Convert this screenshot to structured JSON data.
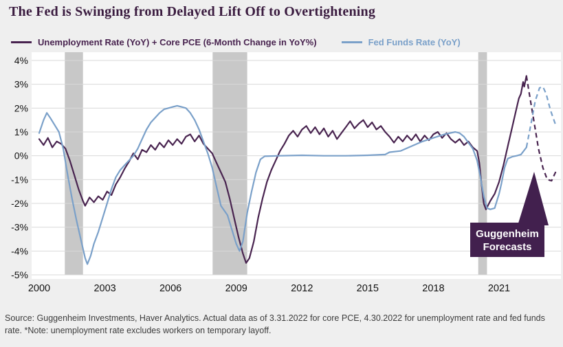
{
  "page": {
    "title": "The Fed is Swinging from Delayed Lift Off to Overtightening",
    "source": "Source: Guggenheim Investments, Haver Analytics. Actual data as of 3.31.2022 for core PCE, 4.30.2022 for unemployment rate and fed funds rate. *Note: unemployment rate excludes workers on temporary layoff."
  },
  "annotation": {
    "lines": [
      "Guggenheim",
      "Forecasts"
    ],
    "color": "#42204e",
    "text_color": "#ffffff"
  },
  "chart_data": {
    "type": "line",
    "title": "The Fed is Swinging from Delayed Lift Off to Overtightening",
    "xlabel": "",
    "ylabel": "",
    "xlim": [
      2000,
      2023.7
    ],
    "ylim": [
      -5,
      4
    ],
    "grid": true,
    "legend_position": "top",
    "x_ticks": [
      2000,
      2003,
      2006,
      2009,
      2012,
      2015,
      2018,
      2021
    ],
    "y_ticks": [
      {
        "value": 4,
        "label": "4%"
      },
      {
        "value": 3,
        "label": "3%"
      },
      {
        "value": 2,
        "label": "2%"
      },
      {
        "value": 1,
        "label": "1%"
      },
      {
        "value": 0,
        "label": "0%"
      },
      {
        "value": -1,
        "label": "-1%"
      },
      {
        "value": -2,
        "label": "-2%"
      },
      {
        "value": -3,
        "label": "-3%"
      },
      {
        "value": -4,
        "label": "-4%"
      },
      {
        "value": -5,
        "label": "-5%"
      }
    ],
    "recession_bands": [
      [
        2001.17,
        2002.0
      ],
      [
        2007.92,
        2009.5
      ],
      [
        2020.05,
        2020.45
      ]
    ],
    "colors": {
      "grid": "#d9d9d9",
      "recession_band": "#c8c8c8",
      "background": "#efefef",
      "plot_background": "#ffffff",
      "tick_label": "#111111"
    },
    "series": [
      {
        "name": "Unemployment Rate (YoY) + Core PCE (6-Month Change in YoY%)",
        "color": "#48234f",
        "solid": [
          [
            2000.0,
            0.7
          ],
          [
            2000.2,
            0.45
          ],
          [
            2000.4,
            0.75
          ],
          [
            2000.6,
            0.35
          ],
          [
            2000.8,
            0.6
          ],
          [
            2001.0,
            0.5
          ],
          [
            2001.2,
            0.3
          ],
          [
            2001.4,
            -0.2
          ],
          [
            2001.6,
            -0.8
          ],
          [
            2001.8,
            -1.4
          ],
          [
            2002.0,
            -1.9
          ],
          [
            2002.1,
            -2.1
          ],
          [
            2002.3,
            -1.75
          ],
          [
            2002.5,
            -1.95
          ],
          [
            2002.7,
            -1.7
          ],
          [
            2002.9,
            -1.85
          ],
          [
            2003.1,
            -1.5
          ],
          [
            2003.3,
            -1.65
          ],
          [
            2003.5,
            -1.2
          ],
          [
            2003.7,
            -0.9
          ],
          [
            2003.9,
            -0.55
          ],
          [
            2004.1,
            -0.25
          ],
          [
            2004.3,
            0.1
          ],
          [
            2004.5,
            -0.15
          ],
          [
            2004.7,
            0.25
          ],
          [
            2004.9,
            0.15
          ],
          [
            2005.1,
            0.45
          ],
          [
            2005.3,
            0.25
          ],
          [
            2005.5,
            0.55
          ],
          [
            2005.7,
            0.35
          ],
          [
            2005.9,
            0.65
          ],
          [
            2006.1,
            0.45
          ],
          [
            2006.3,
            0.7
          ],
          [
            2006.5,
            0.5
          ],
          [
            2006.7,
            0.8
          ],
          [
            2006.9,
            0.9
          ],
          [
            2007.1,
            0.6
          ],
          [
            2007.3,
            0.85
          ],
          [
            2007.5,
            0.5
          ],
          [
            2007.7,
            0.3
          ],
          [
            2007.9,
            0.1
          ],
          [
            2008.1,
            -0.3
          ],
          [
            2008.3,
            -0.7
          ],
          [
            2008.5,
            -1.1
          ],
          [
            2008.7,
            -1.8
          ],
          [
            2008.9,
            -2.6
          ],
          [
            2009.1,
            -3.4
          ],
          [
            2009.3,
            -4.1
          ],
          [
            2009.45,
            -4.5
          ],
          [
            2009.6,
            -4.3
          ],
          [
            2009.8,
            -3.6
          ],
          [
            2010.0,
            -2.6
          ],
          [
            2010.2,
            -1.8
          ],
          [
            2010.4,
            -1.1
          ],
          [
            2010.6,
            -0.6
          ],
          [
            2010.8,
            -0.2
          ],
          [
            2011.0,
            0.2
          ],
          [
            2011.2,
            0.5
          ],
          [
            2011.4,
            0.85
          ],
          [
            2011.6,
            1.05
          ],
          [
            2011.8,
            0.8
          ],
          [
            2012.0,
            1.1
          ],
          [
            2012.2,
            1.25
          ],
          [
            2012.4,
            0.95
          ],
          [
            2012.6,
            1.2
          ],
          [
            2012.8,
            0.9
          ],
          [
            2013.0,
            1.15
          ],
          [
            2013.2,
            0.8
          ],
          [
            2013.4,
            1.05
          ],
          [
            2013.6,
            0.7
          ],
          [
            2013.8,
            0.95
          ],
          [
            2014.0,
            1.2
          ],
          [
            2014.2,
            1.45
          ],
          [
            2014.4,
            1.15
          ],
          [
            2014.6,
            1.35
          ],
          [
            2014.8,
            1.5
          ],
          [
            2015.0,
            1.2
          ],
          [
            2015.2,
            1.4
          ],
          [
            2015.4,
            1.1
          ],
          [
            2015.6,
            1.25
          ],
          [
            2015.8,
            1.0
          ],
          [
            2016.0,
            0.8
          ],
          [
            2016.2,
            0.55
          ],
          [
            2016.4,
            0.8
          ],
          [
            2016.6,
            0.6
          ],
          [
            2016.8,
            0.85
          ],
          [
            2017.0,
            0.65
          ],
          [
            2017.2,
            0.9
          ],
          [
            2017.4,
            0.6
          ],
          [
            2017.6,
            0.85
          ],
          [
            2017.8,
            0.65
          ],
          [
            2018.0,
            0.9
          ],
          [
            2018.2,
            1.0
          ],
          [
            2018.4,
            0.75
          ],
          [
            2018.6,
            0.95
          ],
          [
            2018.8,
            0.7
          ],
          [
            2019.0,
            0.55
          ],
          [
            2019.2,
            0.7
          ],
          [
            2019.4,
            0.45
          ],
          [
            2019.6,
            0.6
          ],
          [
            2019.8,
            0.35
          ],
          [
            2020.0,
            0.2
          ],
          [
            2020.1,
            -0.3
          ],
          [
            2020.2,
            -1.2
          ],
          [
            2020.3,
            -2.0
          ],
          [
            2020.4,
            -2.25
          ],
          [
            2020.6,
            -1.9
          ],
          [
            2020.8,
            -1.6
          ],
          [
            2021.0,
            -1.1
          ],
          [
            2021.2,
            -0.4
          ],
          [
            2021.4,
            0.4
          ],
          [
            2021.6,
            1.2
          ],
          [
            2021.8,
            2.0
          ],
          [
            2021.9,
            2.4
          ],
          [
            2022.0,
            2.6
          ],
          [
            2022.1,
            3.1
          ],
          [
            2022.15,
            2.9
          ],
          [
            2022.25,
            3.35
          ]
        ],
        "forecast_dashed": [
          [
            2022.25,
            3.35
          ],
          [
            2022.4,
            2.5
          ],
          [
            2022.6,
            1.4
          ],
          [
            2022.8,
            0.3
          ],
          [
            2023.0,
            -0.5
          ],
          [
            2023.2,
            -1.0
          ],
          [
            2023.4,
            -1.05
          ],
          [
            2023.6,
            -0.65
          ]
        ]
      },
      {
        "name": "Fed Funds Rate (YoY)",
        "color": "#7aa0c9",
        "solid": [
          [
            2000.0,
            0.95
          ],
          [
            2000.2,
            1.5
          ],
          [
            2000.35,
            1.8
          ],
          [
            2000.5,
            1.6
          ],
          [
            2000.7,
            1.3
          ],
          [
            2000.9,
            1.0
          ],
          [
            2001.1,
            0.3
          ],
          [
            2001.3,
            -0.8
          ],
          [
            2001.5,
            -1.8
          ],
          [
            2001.7,
            -2.7
          ],
          [
            2001.9,
            -3.5
          ],
          [
            2002.1,
            -4.3
          ],
          [
            2002.2,
            -4.55
          ],
          [
            2002.35,
            -4.2
          ],
          [
            2002.5,
            -3.7
          ],
          [
            2002.7,
            -3.2
          ],
          [
            2002.9,
            -2.6
          ],
          [
            2003.1,
            -2.0
          ],
          [
            2003.3,
            -1.4
          ],
          [
            2003.5,
            -0.9
          ],
          [
            2003.7,
            -0.6
          ],
          [
            2003.9,
            -0.4
          ],
          [
            2004.1,
            -0.2
          ],
          [
            2004.3,
            0.0
          ],
          [
            2004.5,
            0.3
          ],
          [
            2004.7,
            0.7
          ],
          [
            2004.9,
            1.1
          ],
          [
            2005.1,
            1.4
          ],
          [
            2005.3,
            1.6
          ],
          [
            2005.5,
            1.8
          ],
          [
            2005.7,
            1.95
          ],
          [
            2005.9,
            2.0
          ],
          [
            2006.1,
            2.05
          ],
          [
            2006.3,
            2.1
          ],
          [
            2006.5,
            2.05
          ],
          [
            2006.7,
            2.0
          ],
          [
            2006.9,
            1.8
          ],
          [
            2007.1,
            1.5
          ],
          [
            2007.3,
            1.1
          ],
          [
            2007.5,
            0.6
          ],
          [
            2007.7,
            0.1
          ],
          [
            2007.9,
            -0.5
          ],
          [
            2008.1,
            -1.3
          ],
          [
            2008.3,
            -2.1
          ],
          [
            2008.45,
            -2.3
          ],
          [
            2008.6,
            -2.5
          ],
          [
            2008.8,
            -3.1
          ],
          [
            2009.0,
            -3.7
          ],
          [
            2009.15,
            -4.0
          ],
          [
            2009.3,
            -3.6
          ],
          [
            2009.5,
            -2.4
          ],
          [
            2009.7,
            -1.5
          ],
          [
            2009.9,
            -0.7
          ],
          [
            2010.1,
            -0.15
          ],
          [
            2010.3,
            -0.02
          ],
          [
            2011.0,
            0.0
          ],
          [
            2012.0,
            0.02
          ],
          [
            2013.0,
            0.0
          ],
          [
            2014.0,
            0.0
          ],
          [
            2015.0,
            0.02
          ],
          [
            2015.8,
            0.05
          ],
          [
            2016.0,
            0.15
          ],
          [
            2016.5,
            0.2
          ],
          [
            2017.0,
            0.4
          ],
          [
            2017.5,
            0.6
          ],
          [
            2018.0,
            0.75
          ],
          [
            2018.5,
            0.9
          ],
          [
            2019.0,
            1.0
          ],
          [
            2019.2,
            0.95
          ],
          [
            2019.4,
            0.8
          ],
          [
            2019.6,
            0.55
          ],
          [
            2019.8,
            0.3
          ],
          [
            2020.0,
            -0.2
          ],
          [
            2020.15,
            -0.9
          ],
          [
            2020.3,
            -1.7
          ],
          [
            2020.45,
            -2.2
          ],
          [
            2020.6,
            -2.25
          ],
          [
            2020.8,
            -2.2
          ],
          [
            2021.0,
            -1.6
          ],
          [
            2021.1,
            -1.2
          ],
          [
            2021.25,
            -0.5
          ],
          [
            2021.4,
            -0.12
          ],
          [
            2021.6,
            -0.04
          ],
          [
            2021.8,
            0.0
          ],
          [
            2022.0,
            0.05
          ],
          [
            2022.25,
            0.35
          ]
        ],
        "forecast_dashed": [
          [
            2022.25,
            0.35
          ],
          [
            2022.45,
            1.3
          ],
          [
            2022.65,
            2.3
          ],
          [
            2022.85,
            2.85
          ],
          [
            2023.0,
            2.9
          ],
          [
            2023.15,
            2.6
          ],
          [
            2023.35,
            1.9
          ],
          [
            2023.6,
            1.25
          ]
        ]
      }
    ]
  }
}
